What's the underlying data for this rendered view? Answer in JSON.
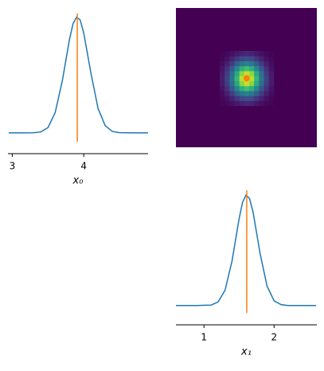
{
  "chart_data": [
    {
      "type": "line",
      "xlabel": "x₀",
      "x": [
        2.95,
        3.1,
        3.3,
        3.4,
        3.5,
        3.6,
        3.7,
        3.8,
        3.85,
        3.9,
        3.95,
        4.0,
        4.1,
        4.2,
        4.3,
        4.4,
        4.5,
        4.7,
        4.9
      ],
      "values": [
        0,
        0,
        0.003,
        0.02,
        0.11,
        0.42,
        1.08,
        1.94,
        2.27,
        2.41,
        2.35,
        2.08,
        1.25,
        0.51,
        0.15,
        0.03,
        0.004,
        0,
        0
      ],
      "color": "#1f77b4",
      "reference": 3.91,
      "reference_color": "#ff7f0e",
      "xlim": [
        2.94,
        4.9
      ],
      "ylim": [
        -0.3,
        2.6
      ],
      "xticks": [
        3,
        4
      ]
    },
    {
      "type": "heatmap",
      "x_edges": [
        1.225,
        1.295,
        1.365,
        1.435,
        1.505,
        1.575,
        1.645,
        1.715,
        1.785,
        1.855,
        1.925,
        1.995
      ],
      "y_edges": [
        3.525,
        3.595,
        3.665,
        3.735,
        3.805,
        3.875,
        3.945,
        4.015,
        4.085,
        4.155,
        4.225,
        4.295
      ],
      "z": [
        [
          0.05,
          0.13,
          0.26,
          0.43,
          0.59,
          0.65,
          0.59,
          0.43,
          0.26,
          0.13,
          0.05
        ],
        [
          0.11,
          0.29,
          0.59,
          0.98,
          1.33,
          1.47,
          1.33,
          0.98,
          0.59,
          0.29,
          0.11
        ],
        [
          0.22,
          0.54,
          1.1,
          1.83,
          2.49,
          2.76,
          2.49,
          1.83,
          1.1,
          0.54,
          0.22
        ],
        [
          0.34,
          0.85,
          1.73,
          2.88,
          3.91,
          4.33,
          3.91,
          2.88,
          1.73,
          0.85,
          0.34
        ],
        [
          0.44,
          1.11,
          2.26,
          3.77,
          5.12,
          5.67,
          5.12,
          3.77,
          2.26,
          1.11,
          0.44
        ],
        [
          0.48,
          1.22,
          2.47,
          4.12,
          5.6,
          6.2,
          5.6,
          4.12,
          2.47,
          1.22,
          0.48
        ],
        [
          0.44,
          1.11,
          2.26,
          3.77,
          5.12,
          5.67,
          5.12,
          3.77,
          2.26,
          1.11,
          0.44
        ],
        [
          0.34,
          0.85,
          1.73,
          2.88,
          3.91,
          4.33,
          3.91,
          2.88,
          1.73,
          0.85,
          0.34
        ],
        [
          0.22,
          0.54,
          1.1,
          1.83,
          2.49,
          2.76,
          2.49,
          1.83,
          1.1,
          0.54,
          0.22
        ],
        [
          0.11,
          0.29,
          0.59,
          0.98,
          1.33,
          1.47,
          1.33,
          0.98,
          0.59,
          0.29,
          0.11
        ],
        [
          0.05,
          0.13,
          0.26,
          0.43,
          0.59,
          0.65,
          0.59,
          0.43,
          0.26,
          0.13,
          0.05
        ]
      ],
      "zlim": [
        0,
        6.2
      ],
      "background": "#440154",
      "xlim": [
        0.6,
        2.61
      ],
      "ylim": [
        2.94,
        4.9
      ],
      "reference_point": [
        1.61,
        3.91
      ],
      "reference_color": "#ff7f0e"
    },
    {
      "type": "line",
      "xlabel": "x₁",
      "x": [
        0.6,
        0.9,
        1.1,
        1.2,
        1.3,
        1.4,
        1.5,
        1.55,
        1.6,
        1.65,
        1.7,
        1.8,
        1.9,
        2.0,
        2.1,
        2.2,
        2.4,
        2.6
      ],
      "values": [
        0,
        0,
        0.01,
        0.08,
        0.35,
        1.03,
        2.0,
        2.39,
        2.56,
        2.48,
        2.17,
        1.21,
        0.45,
        0.11,
        0.02,
        0,
        0,
        0
      ],
      "color": "#1f77b4",
      "reference": 1.61,
      "reference_color": "#ff7f0e",
      "xlim": [
        0.6,
        2.61
      ],
      "ylim": [
        -0.3,
        2.8
      ],
      "xticks": [
        1,
        2
      ]
    }
  ]
}
